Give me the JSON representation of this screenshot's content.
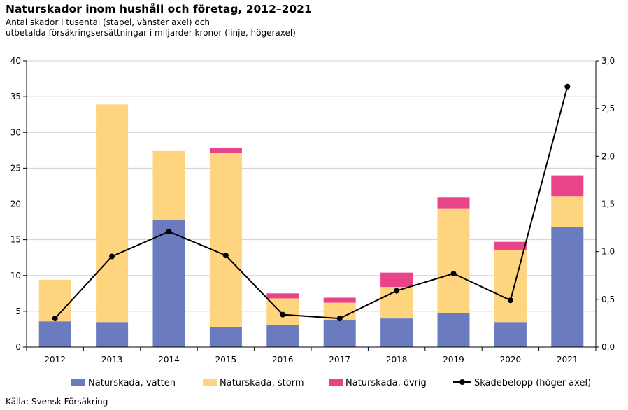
{
  "header": {
    "title": "Naturskador inom hushåll och företag, 2012–2021",
    "subtitle_line1": "Antal skador i tusental (stapel, vänster axel) och",
    "subtitle_line2": "utbetalda försäkringsersättningar i miljarder kronor (linje, högeraxel)"
  },
  "footer": {
    "source": "Källa: Svensk Försäkring"
  },
  "chart_data": {
    "type": "bar",
    "stacked": true,
    "categories": [
      "2012",
      "2013",
      "2014",
      "2015",
      "2016",
      "2017",
      "2018",
      "2019",
      "2020",
      "2021"
    ],
    "series": [
      {
        "name": "Naturskada, vatten",
        "type": "bar",
        "axis": "left",
        "color": "#6b7bbf",
        "values": [
          3.6,
          3.5,
          17.7,
          2.8,
          3.1,
          3.8,
          4.0,
          4.7,
          3.5,
          16.8
        ]
      },
      {
        "name": "Naturskada, storm",
        "type": "bar",
        "axis": "left",
        "color": "#ffd47f",
        "values": [
          5.8,
          30.4,
          9.7,
          24.3,
          3.7,
          2.4,
          4.4,
          14.6,
          10.1,
          4.3
        ]
      },
      {
        "name": "Naturskada, övrig",
        "type": "bar",
        "axis": "left",
        "color": "#e9438a",
        "values": [
          0.0,
          0.0,
          0.0,
          0.7,
          0.7,
          0.7,
          2.0,
          1.6,
          1.1,
          2.9
        ]
      },
      {
        "name": "Skadebelopp (höger axel)",
        "type": "line",
        "axis": "right",
        "color": "#000000",
        "values": [
          0.3,
          0.95,
          1.21,
          0.96,
          0.34,
          0.3,
          0.59,
          0.77,
          0.49,
          2.73
        ]
      }
    ],
    "yaxis_left": {
      "min": 0,
      "max": 40,
      "ticks": [
        "0",
        "5",
        "10",
        "15",
        "20",
        "25",
        "30",
        "35",
        "40"
      ]
    },
    "yaxis_right": {
      "min": 0,
      "max": 3,
      "ticks": [
        "0,0",
        "0,5",
        "1,0",
        "1,5",
        "2,0",
        "2,5",
        "3,0"
      ]
    },
    "grid": true,
    "legend_position": "bottom"
  }
}
